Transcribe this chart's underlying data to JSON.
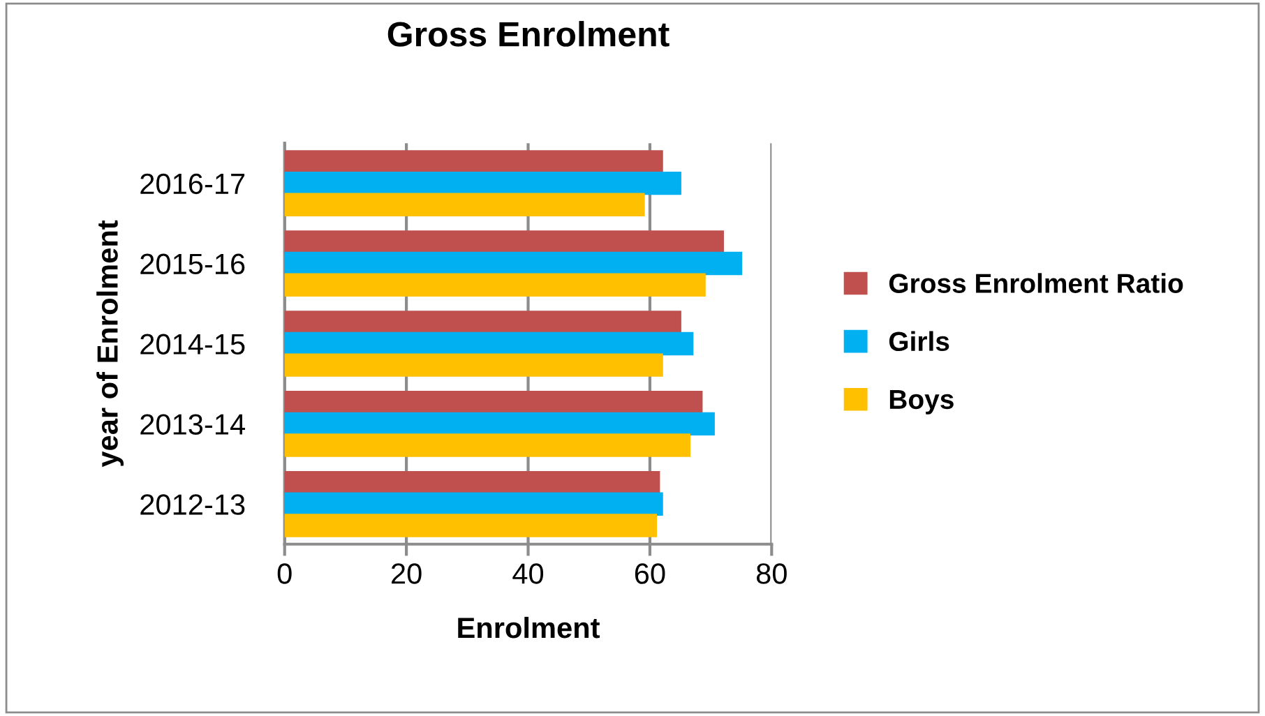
{
  "chart_data": {
    "type": "bar",
    "orientation": "horizontal",
    "title": "Gross Enrolment",
    "xlabel": "Enrolment",
    "ylabel": "year of Enrolment",
    "categories": [
      "2016-17",
      "2015-16",
      "2014-15",
      "2013-14",
      "2012-13"
    ],
    "series": [
      {
        "name": "Gross Enrolment Ratio",
        "color": "#c0504d",
        "values": [
          62,
          72,
          65,
          68.5,
          61.5
        ]
      },
      {
        "name": "Girls",
        "color": "#00b0f0",
        "values": [
          65,
          75,
          67,
          70.5,
          62
        ]
      },
      {
        "name": "Boys",
        "color": "#ffc000",
        "values": [
          59,
          69,
          62,
          66.5,
          61
        ]
      }
    ],
    "xlim": [
      0,
      80
    ],
    "xticks": [
      0,
      20,
      40,
      60,
      80
    ],
    "grid": "x",
    "legend": "right"
  }
}
